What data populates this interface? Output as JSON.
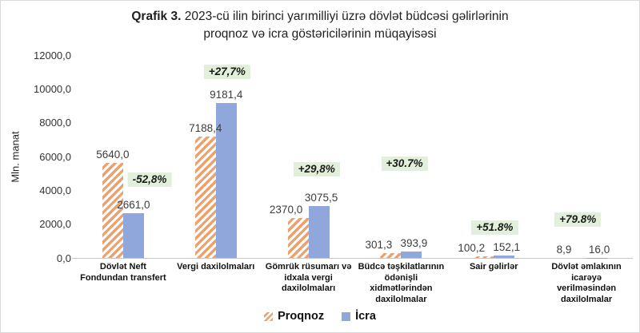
{
  "title": {
    "prefix": "Qrafik 3.",
    "line1": "2023-cü ilin birinci yarımilliyi üzrə dövlət büdcəsi gəlirlərinin",
    "line2": "proqnoz və icra göstəricilərinin müqayisəsi"
  },
  "chart_data": {
    "type": "bar",
    "title": "Qrafik 3. 2023-cü ilin birinci yarımilliyi üzrə dövlət büdcəsi gəlirlərinin proqnoz və icra göstəricilərinin müqayisəsi",
    "ylabel": "Mln. manat",
    "ylim": [
      0,
      12000
    ],
    "ytick_step": 2000,
    "yticks_top_to_bottom": [
      "12000,0",
      "10000,0",
      "8000,0",
      "6000,0",
      "4000,0",
      "2000,0",
      "0,0"
    ],
    "grid": false,
    "legend_position": "bottom",
    "categories": [
      "Dövlət Neft\nFondundan transfert",
      "Vergi daxilolmaları",
      "Gömrük rüsumarı və\nidxala vergi\ndaxilolmaları",
      "Büdcə təşkilatlarının\nödənişli\nxidmətlərindən\ndaxilolmalar",
      "Sair gəlirlər",
      "Dövlət əmlakının\nicarəyə\nverilməsindən\ndaxilolmalar"
    ],
    "series": [
      {
        "name": "Proqnoz",
        "style": "hatched-diagonal",
        "values": [
          5640.0,
          7188.4,
          2370.0,
          301.3,
          100.2,
          8.9
        ],
        "labels": [
          "5640,0",
          "7188,4",
          "2370,0",
          "301,3",
          "100,2",
          "8,9"
        ]
      },
      {
        "name": "İcra",
        "style": "solid",
        "values": [
          2661.0,
          9181.4,
          3075.5,
          393.9,
          152.1,
          16.0
        ],
        "labels": [
          "2661,0",
          "9181,4",
          "3075,5",
          "393,9",
          "152,1",
          "16,0"
        ]
      }
    ],
    "change_badges": [
      "-52,8%",
      "+27,7%",
      "+29,8%",
      "+30.7%",
      "+51.8%",
      "+79.8%"
    ]
  },
  "colors": {
    "proqnoz_stripe": "#eca26f",
    "icra_fill": "#8fa7db",
    "badge_bg": "#e2efda",
    "axis_line": "#c6c6c6"
  }
}
